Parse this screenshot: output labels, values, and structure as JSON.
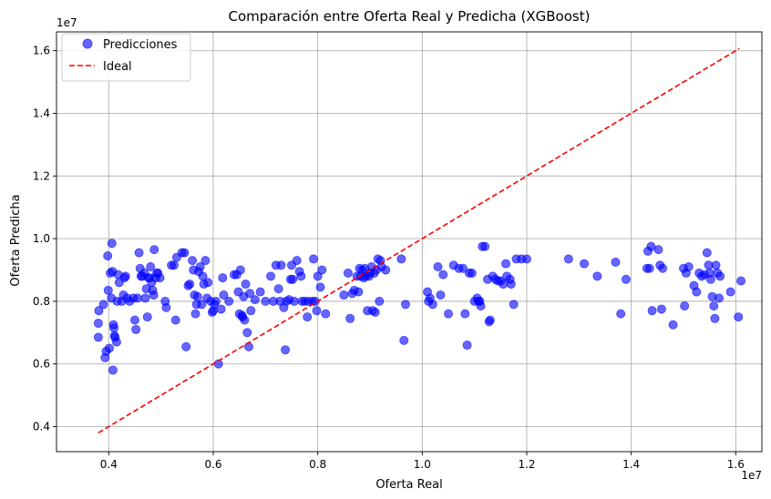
{
  "chart_data": {
    "type": "scatter",
    "title": "Comparación entre Oferta Real y Predicha (XGBoost)",
    "xlabel": "Oferta Real",
    "ylabel": "Oferta Predicha",
    "x_offset_label": "1e7",
    "y_offset_label": "1e7",
    "x_scale": 10000000,
    "y_scale": 10000000,
    "xlim": [
      0.3,
      1.65
    ],
    "ylim": [
      0.32,
      1.66
    ],
    "xticks": [
      0.4,
      0.6,
      0.8,
      1.0,
      1.2,
      1.4,
      1.6
    ],
    "yticks": [
      0.4,
      0.6,
      0.8,
      1.0,
      1.2,
      1.4,
      1.6
    ],
    "xtick_labels": [
      "0.4",
      "0.6",
      "0.8",
      "1.0",
      "1.2",
      "1.4",
      "1.6"
    ],
    "ytick_labels": [
      "0.4",
      "0.6",
      "0.8",
      "1.0",
      "1.2",
      "1.4",
      "1.6"
    ],
    "grid": true,
    "legend_position": "top-left",
    "series": [
      {
        "name": "Predicciones",
        "kind": "scatter",
        "color": "#0000ff",
        "opacity": 0.6,
        "points": [
          [
            0.38,
            0.685
          ],
          [
            0.38,
            0.73
          ],
          [
            0.381,
            0.77
          ],
          [
            0.39,
            0.79
          ],
          [
            0.393,
            0.62
          ],
          [
            0.395,
            0.64
          ],
          [
            0.398,
            0.945
          ],
          [
            0.399,
            0.835
          ],
          [
            0.401,
            0.65
          ],
          [
            0.403,
            0.89
          ],
          [
            0.405,
            0.81
          ],
          [
            0.406,
            0.985
          ],
          [
            0.407,
            0.895
          ],
          [
            0.408,
            0.58
          ],
          [
            0.409,
            0.725
          ],
          [
            0.41,
            0.715
          ],
          [
            0.411,
            0.69
          ],
          [
            0.412,
            0.685
          ],
          [
            0.415,
            0.67
          ],
          [
            0.416,
            0.8
          ],
          [
            0.418,
            0.885
          ],
          [
            0.42,
            0.86
          ],
          [
            0.425,
            0.8
          ],
          [
            0.428,
            0.82
          ],
          [
            0.43,
            0.875
          ],
          [
            0.432,
            0.88
          ],
          [
            0.435,
            0.81
          ],
          [
            0.44,
            0.8
          ],
          [
            0.447,
            0.81
          ],
          [
            0.45,
            0.74
          ],
          [
            0.452,
            0.71
          ],
          [
            0.455,
            0.81
          ],
          [
            0.458,
            0.955
          ],
          [
            0.46,
            0.905
          ],
          [
            0.462,
            0.88
          ],
          [
            0.464,
            0.88
          ],
          [
            0.468,
            0.89
          ],
          [
            0.47,
            0.81
          ],
          [
            0.472,
            0.84
          ],
          [
            0.474,
            0.75
          ],
          [
            0.476,
            0.875
          ],
          [
            0.478,
            0.875
          ],
          [
            0.48,
            0.91
          ],
          [
            0.482,
            0.86
          ],
          [
            0.484,
            0.835
          ],
          [
            0.486,
            0.82
          ],
          [
            0.487,
            0.965
          ],
          [
            0.49,
            0.875
          ],
          [
            0.492,
            0.89
          ],
          [
            0.494,
            0.89
          ],
          [
            0.498,
            0.875
          ],
          [
            0.508,
            0.8
          ],
          [
            0.51,
            0.78
          ],
          [
            0.52,
            0.915
          ],
          [
            0.525,
            0.915
          ],
          [
            0.528,
            0.74
          ],
          [
            0.53,
            0.94
          ],
          [
            0.54,
            0.955
          ],
          [
            0.545,
            0.955
          ],
          [
            0.548,
            0.655
          ],
          [
            0.552,
            0.85
          ],
          [
            0.555,
            0.855
          ],
          [
            0.56,
            0.93
          ],
          [
            0.562,
            0.9
          ],
          [
            0.564,
            0.82
          ],
          [
            0.566,
            0.76
          ],
          [
            0.568,
            0.79
          ],
          [
            0.57,
            0.815
          ],
          [
            0.572,
            0.895
          ],
          [
            0.575,
            0.91
          ],
          [
            0.578,
            0.79
          ],
          [
            0.58,
            0.88
          ],
          [
            0.582,
            0.855
          ],
          [
            0.585,
            0.93
          ],
          [
            0.588,
            0.81
          ],
          [
            0.59,
            0.86
          ],
          [
            0.595,
            0.8
          ],
          [
            0.598,
            0.765
          ],
          [
            0.6,
            0.77
          ],
          [
            0.602,
            0.79
          ],
          [
            0.605,
            0.8
          ],
          [
            0.61,
            0.6
          ],
          [
            0.615,
            0.775
          ],
          [
            0.618,
            0.875
          ],
          [
            0.62,
            0.82
          ],
          [
            0.63,
            0.8
          ],
          [
            0.64,
            0.885
          ],
          [
            0.645,
            0.885
          ],
          [
            0.648,
            0.83
          ],
          [
            0.65,
            0.76
          ],
          [
            0.652,
            0.9
          ],
          [
            0.655,
            0.755
          ],
          [
            0.656,
            0.75
          ],
          [
            0.658,
            0.815
          ],
          [
            0.66,
            0.74
          ],
          [
            0.662,
            0.855
          ],
          [
            0.665,
            0.7
          ],
          [
            0.668,
            0.655
          ],
          [
            0.67,
            0.825
          ],
          [
            0.672,
            0.77
          ],
          [
            0.68,
            0.805
          ],
          [
            0.69,
            0.83
          ],
          [
            0.7,
            0.8
          ],
          [
            0.71,
            0.88
          ],
          [
            0.715,
            0.8
          ],
          [
            0.72,
            0.915
          ],
          [
            0.725,
            0.84
          ],
          [
            0.728,
            0.8
          ],
          [
            0.73,
            0.915
          ],
          [
            0.735,
            0.78
          ],
          [
            0.738,
            0.645
          ],
          [
            0.74,
            0.8
          ],
          [
            0.745,
            0.805
          ],
          [
            0.748,
            0.87
          ],
          [
            0.75,
            0.915
          ],
          [
            0.752,
            0.87
          ],
          [
            0.755,
            0.8
          ],
          [
            0.76,
            0.93
          ],
          [
            0.765,
            0.895
          ],
          [
            0.768,
            0.88
          ],
          [
            0.77,
            0.8
          ],
          [
            0.775,
            0.8
          ],
          [
            0.78,
            0.75
          ],
          [
            0.782,
            0.8
          ],
          [
            0.79,
            0.8
          ],
          [
            0.792,
            0.935
          ],
          [
            0.795,
            0.8
          ],
          [
            0.798,
            0.77
          ],
          [
            0.8,
            0.88
          ],
          [
            0.805,
            0.845
          ],
          [
            0.808,
            0.9
          ],
          [
            0.815,
            0.76
          ],
          [
            0.85,
            0.82
          ],
          [
            0.858,
            0.89
          ],
          [
            0.862,
            0.745
          ],
          [
            0.866,
            0.825
          ],
          [
            0.87,
            0.835
          ],
          [
            0.875,
            0.88
          ],
          [
            0.878,
            0.83
          ],
          [
            0.88,
            0.905
          ],
          [
            0.882,
            0.88
          ],
          [
            0.885,
            0.9
          ],
          [
            0.888,
            0.875
          ],
          [
            0.89,
            0.905
          ],
          [
            0.892,
            0.88
          ],
          [
            0.895,
            0.77
          ],
          [
            0.898,
            0.88
          ],
          [
            0.9,
            0.89
          ],
          [
            0.903,
            0.91
          ],
          [
            0.905,
            0.77
          ],
          [
            0.908,
            0.89
          ],
          [
            0.91,
            0.765
          ],
          [
            0.912,
            0.9
          ],
          [
            0.915,
            0.935
          ],
          [
            0.918,
            0.8
          ],
          [
            0.92,
            0.93
          ],
          [
            0.922,
            0.91
          ],
          [
            0.93,
            0.9
          ],
          [
            0.96,
            0.935
          ],
          [
            0.965,
            0.675
          ],
          [
            0.968,
            0.79
          ],
          [
            1.01,
            0.83
          ],
          [
            1.012,
            0.8
          ],
          [
            1.015,
            0.81
          ],
          [
            1.02,
            0.79
          ],
          [
            1.03,
            0.91
          ],
          [
            1.035,
            0.82
          ],
          [
            1.04,
            0.885
          ],
          [
            1.05,
            0.76
          ],
          [
            1.06,
            0.915
          ],
          [
            1.07,
            0.905
          ],
          [
            1.078,
            0.905
          ],
          [
            1.082,
            0.76
          ],
          [
            1.086,
            0.66
          ],
          [
            1.09,
            0.89
          ],
          [
            1.095,
            0.89
          ],
          [
            1.1,
            0.8
          ],
          [
            1.105,
            0.81
          ],
          [
            1.108,
            0.8
          ],
          [
            1.11,
            0.8
          ],
          [
            1.112,
            0.785
          ],
          [
            1.115,
            0.975
          ],
          [
            1.12,
            0.975
          ],
          [
            1.125,
            0.87
          ],
          [
            1.128,
            0.735
          ],
          [
            1.13,
            0.74
          ],
          [
            1.135,
            0.88
          ],
          [
            1.14,
            0.87
          ],
          [
            1.145,
            0.865
          ],
          [
            1.15,
            0.865
          ],
          [
            1.155,
            0.855
          ],
          [
            1.16,
            0.92
          ],
          [
            1.162,
            0.88
          ],
          [
            1.168,
            0.87
          ],
          [
            1.17,
            0.855
          ],
          [
            1.175,
            0.79
          ],
          [
            1.18,
            0.935
          ],
          [
            1.19,
            0.935
          ],
          [
            1.2,
            0.935
          ],
          [
            1.28,
            0.935
          ],
          [
            1.31,
            0.92
          ],
          [
            1.335,
            0.88
          ],
          [
            1.37,
            0.925
          ],
          [
            1.38,
            0.76
          ],
          [
            1.39,
            0.87
          ],
          [
            1.43,
            0.905
          ],
          [
            1.432,
            0.96
          ],
          [
            1.435,
            0.905
          ],
          [
            1.438,
            0.975
          ],
          [
            1.44,
            0.77
          ],
          [
            1.452,
            0.965
          ],
          [
            1.455,
            0.915
          ],
          [
            1.458,
            0.775
          ],
          [
            1.46,
            0.905
          ],
          [
            1.48,
            0.725
          ],
          [
            1.5,
            0.905
          ],
          [
            1.502,
            0.785
          ],
          [
            1.505,
            0.89
          ],
          [
            1.51,
            0.91
          ],
          [
            1.52,
            0.85
          ],
          [
            1.525,
            0.83
          ],
          [
            1.53,
            0.89
          ],
          [
            1.535,
            0.88
          ],
          [
            1.54,
            0.885
          ],
          [
            1.545,
            0.955
          ],
          [
            1.548,
            0.915
          ],
          [
            1.55,
            0.89
          ],
          [
            1.552,
            0.87
          ],
          [
            1.555,
            0.815
          ],
          [
            1.558,
            0.785
          ],
          [
            1.56,
            0.745
          ],
          [
            1.562,
            0.915
          ],
          [
            1.565,
            0.89
          ],
          [
            1.568,
            0.81
          ],
          [
            1.57,
            0.88
          ],
          [
            1.59,
            0.83
          ],
          [
            1.605,
            0.75
          ],
          [
            1.61,
            0.865
          ]
        ]
      },
      {
        "name": "Ideal",
        "kind": "line",
        "color": "#ff0000",
        "dashed": true,
        "points": [
          [
            0.38,
            0.38
          ],
          [
            1.607,
            1.607
          ]
        ]
      }
    ]
  }
}
